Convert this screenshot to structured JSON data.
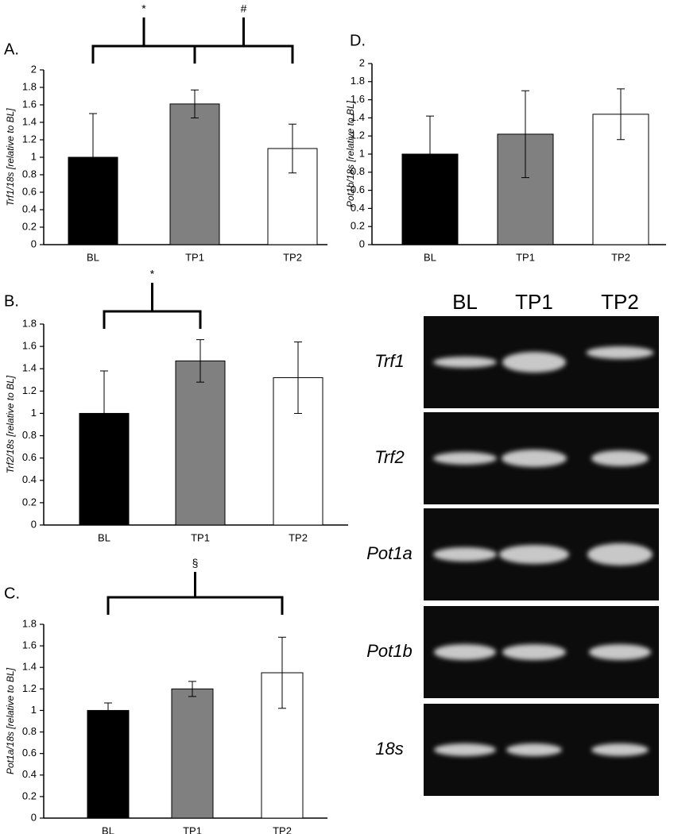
{
  "chart_data": [
    {
      "type": "bar",
      "panel": "A.",
      "ylabel": "Trf1/18s [relative to BL]",
      "categories": [
        "BL",
        "TP1",
        "TP2"
      ],
      "values": [
        1.0,
        1.61,
        1.1
      ],
      "errors": [
        0.5,
        0.16,
        0.28
      ],
      "colors": [
        "#000000",
        "#808080",
        "#ffffff"
      ],
      "ylim": [
        0,
        2
      ],
      "yticks": [
        0,
        0.2,
        0.4,
        0.6,
        0.8,
        1,
        1.2,
        1.4,
        1.6,
        1.8,
        2
      ],
      "annotations": [
        {
          "text": "*",
          "from": 0,
          "to": 1
        },
        {
          "text": "#",
          "from": 1,
          "to": 2
        }
      ]
    },
    {
      "type": "bar",
      "panel": "D.",
      "ylabel": "Pot1b/18s [relative to BL]",
      "categories": [
        "BL",
        "TP1",
        "TP2"
      ],
      "values": [
        1.0,
        1.22,
        1.44
      ],
      "errors": [
        0.42,
        0.48,
        0.28
      ],
      "colors": [
        "#000000",
        "#808080",
        "#ffffff"
      ],
      "ylim": [
        0,
        2
      ],
      "yticks": [
        0,
        0.2,
        0.4,
        0.6,
        0.8,
        1,
        1.2,
        1.4,
        1.6,
        1.8,
        2
      ]
    },
    {
      "type": "bar",
      "panel": "B.",
      "ylabel": "Trf2/18s [relative to BL]",
      "categories": [
        "BL",
        "TP1",
        "TP2"
      ],
      "values": [
        1.0,
        1.47,
        1.32
      ],
      "errors": [
        0.38,
        0.19,
        0.32
      ],
      "colors": [
        "#000000",
        "#808080",
        "#ffffff"
      ],
      "ylim": [
        0,
        1.8
      ],
      "yticks": [
        0,
        0.2,
        0.4,
        0.6,
        0.8,
        1,
        1.2,
        1.4,
        1.6,
        1.8
      ],
      "annotations": [
        {
          "text": "*",
          "from": 0,
          "to": 1
        }
      ]
    },
    {
      "type": "bar",
      "panel": "C.",
      "ylabel": "Pot1a/18s [relative to BL]",
      "categories": [
        "BL",
        "TP1",
        "TP2"
      ],
      "values": [
        1.0,
        1.2,
        1.35
      ],
      "errors": [
        0.07,
        0.07,
        0.33
      ],
      "colors": [
        "#000000",
        "#808080",
        "#ffffff"
      ],
      "ylim": [
        0,
        1.8
      ],
      "yticks": [
        0,
        0.2,
        0.4,
        0.6,
        0.8,
        1,
        1.2,
        1.4,
        1.6,
        1.8
      ],
      "annotations": [
        {
          "text": "§",
          "from": 0,
          "to": 2
        }
      ]
    }
  ],
  "gel": {
    "lanes": [
      "BL",
      "TP1",
      "TP2"
    ],
    "genes": [
      "Trf1",
      "Trf2",
      "Pot1a",
      "Pot1b",
      "18s"
    ]
  }
}
